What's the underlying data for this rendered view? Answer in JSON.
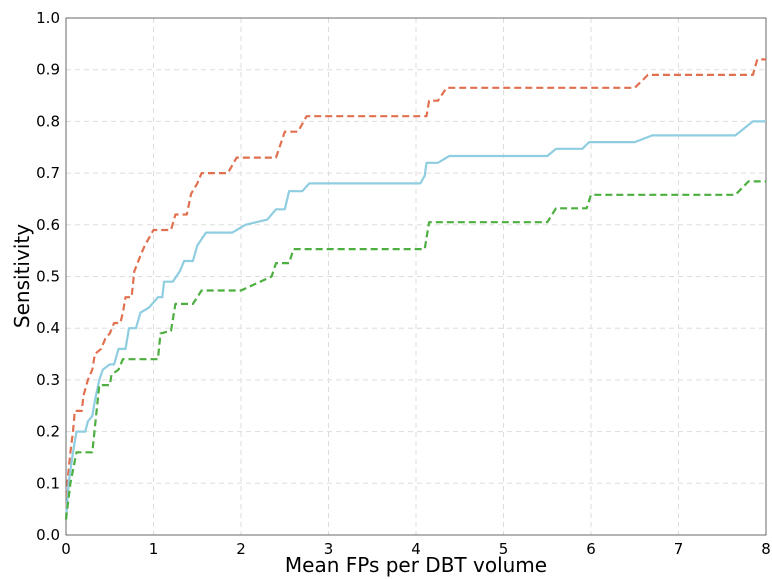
{
  "chart_data": {
    "type": "line",
    "title": "",
    "xlabel": "Mean FPs per DBT volume",
    "ylabel": "Sensitivity",
    "xlim": [
      0,
      8
    ],
    "ylim": [
      0,
      1.0
    ],
    "grid": true,
    "x_ticks": [
      "0",
      "1",
      "2",
      "3",
      "4",
      "5",
      "6",
      "7",
      "8"
    ],
    "y_ticks": [
      "0.0",
      "0.1",
      "0.2",
      "0.3",
      "0.4",
      "0.5",
      "0.6",
      "0.7",
      "0.8",
      "0.9",
      "1.0"
    ],
    "series": [
      {
        "color": "#e0704f",
        "dashed": true,
        "points": [
          [
            0,
            0.03
          ],
          [
            0.02,
            0.11
          ],
          [
            0.05,
            0.16
          ],
          [
            0.08,
            0.2
          ],
          [
            0.1,
            0.24
          ],
          [
            0.18,
            0.24
          ],
          [
            0.2,
            0.27
          ],
          [
            0.25,
            0.3
          ],
          [
            0.3,
            0.32
          ],
          [
            0.33,
            0.35
          ],
          [
            0.4,
            0.36
          ],
          [
            0.45,
            0.38
          ],
          [
            0.5,
            0.39
          ],
          [
            0.55,
            0.41
          ],
          [
            0.62,
            0.41
          ],
          [
            0.65,
            0.43
          ],
          [
            0.68,
            0.46
          ],
          [
            0.75,
            0.46
          ],
          [
            0.78,
            0.51
          ],
          [
            0.85,
            0.54
          ],
          [
            0.9,
            0.56
          ],
          [
            1.0,
            0.59
          ],
          [
            1.2,
            0.59
          ],
          [
            1.25,
            0.62
          ],
          [
            1.38,
            0.62
          ],
          [
            1.43,
            0.66
          ],
          [
            1.5,
            0.68
          ],
          [
            1.55,
            0.7
          ],
          [
            1.85,
            0.7
          ],
          [
            1.95,
            0.73
          ],
          [
            2.4,
            0.73
          ],
          [
            2.5,
            0.78
          ],
          [
            2.65,
            0.78
          ],
          [
            2.75,
            0.81
          ],
          [
            4.12,
            0.81
          ],
          [
            4.15,
            0.84
          ],
          [
            4.25,
            0.84
          ],
          [
            4.35,
            0.865
          ],
          [
            6.5,
            0.865
          ],
          [
            6.65,
            0.89
          ],
          [
            7.85,
            0.89
          ],
          [
            7.9,
            0.92
          ],
          [
            8.0,
            0.92
          ]
        ]
      },
      {
        "color": "#8fcde0",
        "dashed": false,
        "points": [
          [
            0,
            0.03
          ],
          [
            0.03,
            0.1
          ],
          [
            0.08,
            0.16
          ],
          [
            0.12,
            0.2
          ],
          [
            0.22,
            0.2
          ],
          [
            0.25,
            0.22
          ],
          [
            0.3,
            0.23
          ],
          [
            0.33,
            0.26
          ],
          [
            0.38,
            0.3
          ],
          [
            0.42,
            0.32
          ],
          [
            0.5,
            0.33
          ],
          [
            0.55,
            0.33
          ],
          [
            0.6,
            0.36
          ],
          [
            0.68,
            0.36
          ],
          [
            0.72,
            0.4
          ],
          [
            0.8,
            0.4
          ],
          [
            0.85,
            0.43
          ],
          [
            0.95,
            0.44
          ],
          [
            1.0,
            0.45
          ],
          [
            1.05,
            0.46
          ],
          [
            1.1,
            0.46
          ],
          [
            1.12,
            0.49
          ],
          [
            1.22,
            0.49
          ],
          [
            1.3,
            0.51
          ],
          [
            1.35,
            0.53
          ],
          [
            1.45,
            0.53
          ],
          [
            1.5,
            0.56
          ],
          [
            1.6,
            0.585
          ],
          [
            1.9,
            0.585
          ],
          [
            2.05,
            0.6
          ],
          [
            2.3,
            0.61
          ],
          [
            2.4,
            0.63
          ],
          [
            2.5,
            0.63
          ],
          [
            2.55,
            0.665
          ],
          [
            2.7,
            0.665
          ],
          [
            2.78,
            0.68
          ],
          [
            4.05,
            0.68
          ],
          [
            4.1,
            0.695
          ],
          [
            4.12,
            0.72
          ],
          [
            4.25,
            0.72
          ],
          [
            4.38,
            0.733
          ],
          [
            5.5,
            0.733
          ],
          [
            5.6,
            0.747
          ],
          [
            5.9,
            0.747
          ],
          [
            5.98,
            0.76
          ],
          [
            6.5,
            0.76
          ],
          [
            6.7,
            0.773
          ],
          [
            7.65,
            0.773
          ],
          [
            7.85,
            0.8
          ],
          [
            8.0,
            0.8
          ]
        ]
      },
      {
        "color": "#4caf3f",
        "dashed": true,
        "points": [
          [
            0,
            0.03
          ],
          [
            0.05,
            0.1
          ],
          [
            0.12,
            0.16
          ],
          [
            0.3,
            0.16
          ],
          [
            0.35,
            0.24
          ],
          [
            0.38,
            0.29
          ],
          [
            0.5,
            0.29
          ],
          [
            0.52,
            0.31
          ],
          [
            0.6,
            0.32
          ],
          [
            0.65,
            0.34
          ],
          [
            1.05,
            0.34
          ],
          [
            1.08,
            0.39
          ],
          [
            1.2,
            0.395
          ],
          [
            1.25,
            0.447
          ],
          [
            1.45,
            0.447
          ],
          [
            1.55,
            0.473
          ],
          [
            2.0,
            0.473
          ],
          [
            2.35,
            0.5
          ],
          [
            2.4,
            0.526
          ],
          [
            2.55,
            0.526
          ],
          [
            2.6,
            0.553
          ],
          [
            4.1,
            0.553
          ],
          [
            4.15,
            0.605
          ],
          [
            5.5,
            0.605
          ],
          [
            5.6,
            0.632
          ],
          [
            5.95,
            0.632
          ],
          [
            6.0,
            0.658
          ],
          [
            7.65,
            0.658
          ],
          [
            7.8,
            0.684
          ],
          [
            8.0,
            0.684
          ]
        ]
      }
    ]
  }
}
